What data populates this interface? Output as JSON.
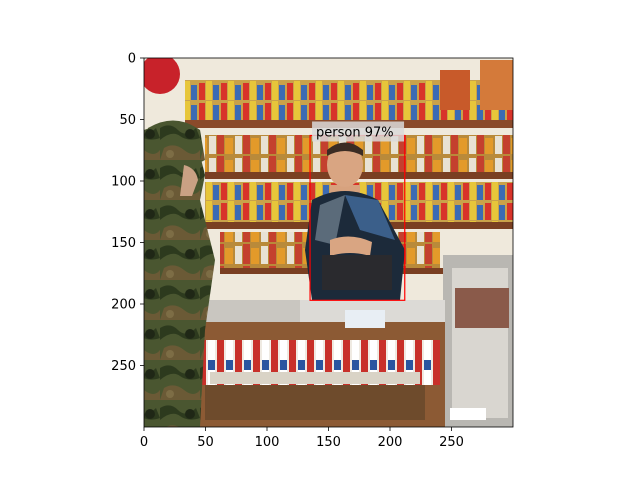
{
  "image": {
    "description_colors": {
      "wall": "#efe9dc",
      "shelf_wood": "#8a4a2a",
      "counter_glass": "#c9c6c0",
      "cashier_sweater_dark": "#1c2a3a",
      "cashier_sweater_blue": "#3b5f8a",
      "soldier_camo_green": "#3e4b2a",
      "soldier_camo_brown": "#5c4a2e"
    },
    "width_units": 300,
    "height_units": 300
  },
  "axes": {
    "xlim": [
      0,
      300
    ],
    "ylim": [
      300,
      0
    ],
    "x_ticks": [
      0,
      50,
      100,
      150,
      200,
      250
    ],
    "y_ticks": [
      0,
      50,
      100,
      150,
      200,
      250
    ]
  },
  "detections": [
    {
      "label": "person 97%",
      "class": "person",
      "score": 97,
      "box": {
        "x1": 135,
        "y1": 63,
        "x2": 212,
        "y2": 197
      },
      "box_color": "#ff0000"
    }
  ]
}
